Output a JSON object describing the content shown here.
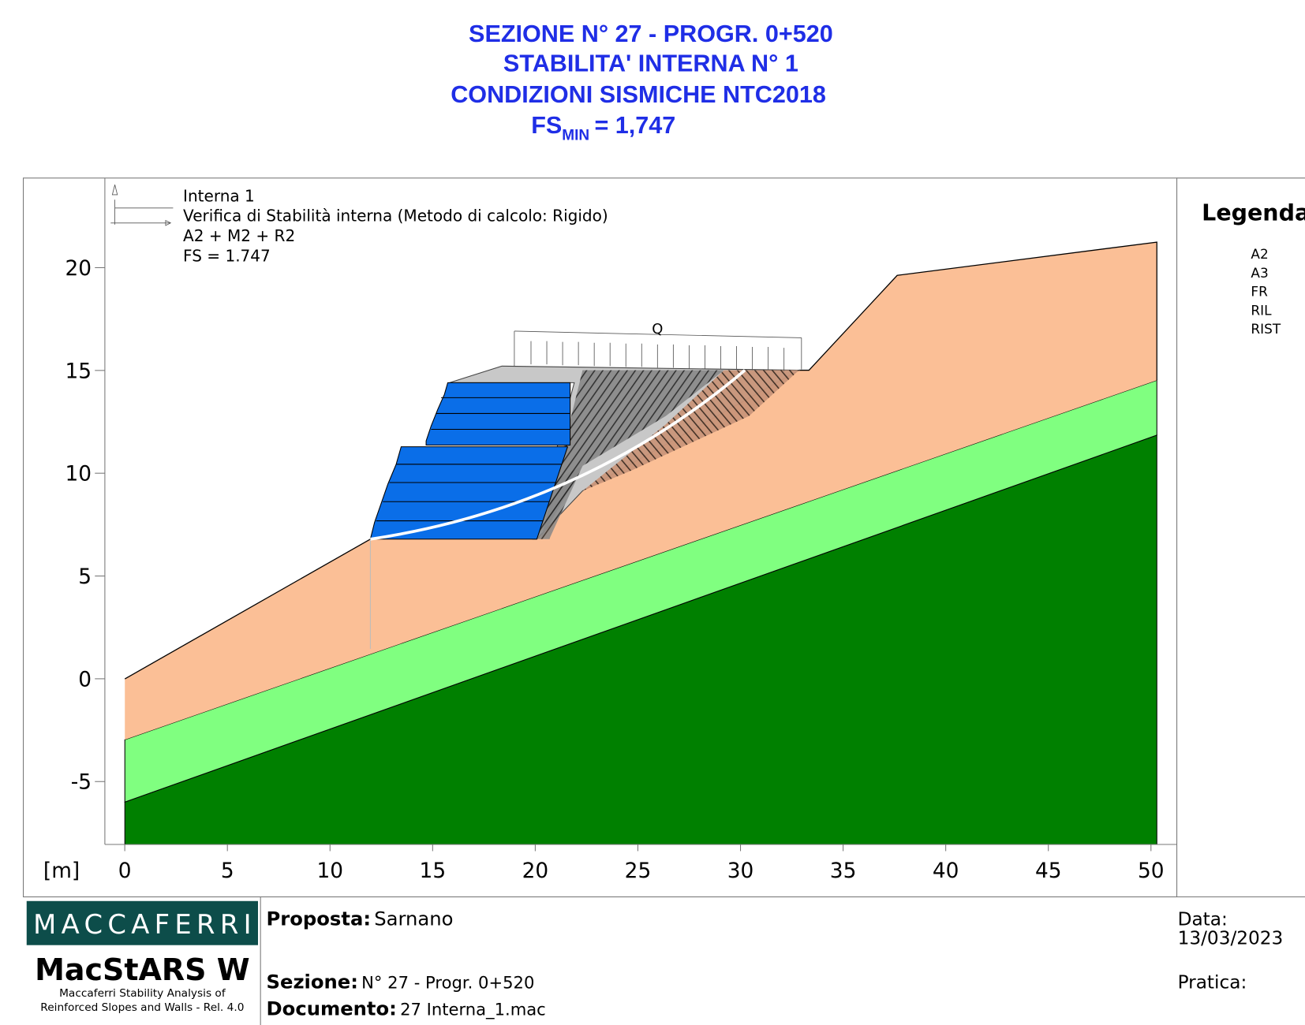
{
  "header": {
    "title_lines": [
      "SEZIONE N° 27 - PROGR. 0+520",
      "STABILITA' INTERNA N° 1",
      "CONDIZIONI SISMICHE  NTC2018"
    ],
    "fs": {
      "main": "FS",
      "sub": "MIN",
      "value": "= 1,747"
    }
  },
  "plot": {
    "notes": [
      "Interna 1",
      "Verifica di Stabilità interna (Metodo di calcolo: Rigido)",
      "A2 + M2 + R2",
      "FS = 1.747"
    ],
    "load_label": "Q",
    "axis_unit": "[m]",
    "xlim": [
      -0.97,
      51.26
    ],
    "ylim": [
      -8.06,
      24.36
    ],
    "xticks": [
      0,
      5,
      10,
      15,
      20,
      25,
      30,
      35,
      40,
      45,
      50
    ],
    "yticks": [
      -5,
      0,
      5,
      10,
      15,
      20
    ]
  },
  "legend": {
    "title": "Legenda",
    "items": [
      "A2",
      "A3",
      "FR",
      "RIL",
      "RIST"
    ]
  },
  "footer": {
    "logo": "MACCAFERRI",
    "product": "MacStARS W",
    "product_desc": [
      "Maccaferri Stability Analysis of",
      "Reinforced Slopes and Walls - Rel. 4.0"
    ],
    "proposta_label": "Proposta:",
    "proposta": "Sarnano",
    "sezione_label": "Sezione:",
    "sezione": "N° 27 - Progr. 0+520",
    "documento_label": "Documento:",
    "documento": "27 Interna_1.mac",
    "data_label": "Data:",
    "data": "13/03/2023",
    "pratica_label": "Pratica:"
  }
}
